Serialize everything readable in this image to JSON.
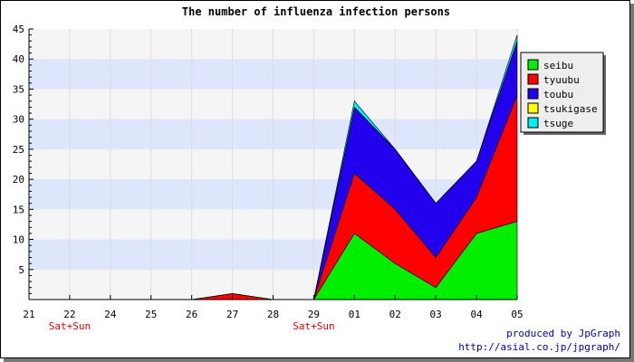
{
  "chart_data": {
    "type": "area",
    "stacked": true,
    "title": "The number of influenza infection persons",
    "xlabel": "",
    "ylabel": "",
    "categories": [
      "21",
      "22",
      "24",
      "25",
      "26",
      "27",
      "28",
      "29",
      "01",
      "02",
      "03",
      "04",
      "05"
    ],
    "category_sublabels": [
      "",
      "Sat+Sun",
      "",
      "",
      "",
      "",
      "",
      "Sat+Sun",
      "",
      "",
      "",
      "",
      ""
    ],
    "ylim": [
      0,
      45
    ],
    "yticks": [
      5,
      10,
      15,
      20,
      25,
      30,
      35,
      40,
      45
    ],
    "grid": true,
    "legend_position": "right",
    "series": [
      {
        "name": "seibu",
        "color": "#00ee00",
        "values": [
          0,
          0,
          0,
          0,
          0,
          0,
          0,
          0,
          11,
          6,
          2,
          11,
          13
        ]
      },
      {
        "name": "tyuubu",
        "color": "#ff0000",
        "values": [
          0,
          0,
          0,
          0,
          0,
          1,
          0,
          0,
          10,
          9,
          5,
          6,
          21
        ]
      },
      {
        "name": "toubu",
        "color": "#2200ee",
        "values": [
          0,
          0,
          0,
          0,
          0,
          0,
          0,
          0,
          11,
          10,
          9,
          6,
          9
        ]
      },
      {
        "name": "tsukigase",
        "color": "#ffff00",
        "values": [
          0,
          0,
          0,
          0,
          0,
          0,
          0,
          0,
          0,
          0,
          0,
          0,
          0
        ]
      },
      {
        "name": "tsuge",
        "color": "#00eeee",
        "values": [
          0,
          0,
          0,
          0,
          0,
          0,
          0,
          0,
          1,
          0,
          0,
          0,
          1
        ]
      }
    ]
  },
  "footer": {
    "line1": "produced by JpGraph",
    "line2": "http://asial.co.jp/jpgraph/"
  }
}
